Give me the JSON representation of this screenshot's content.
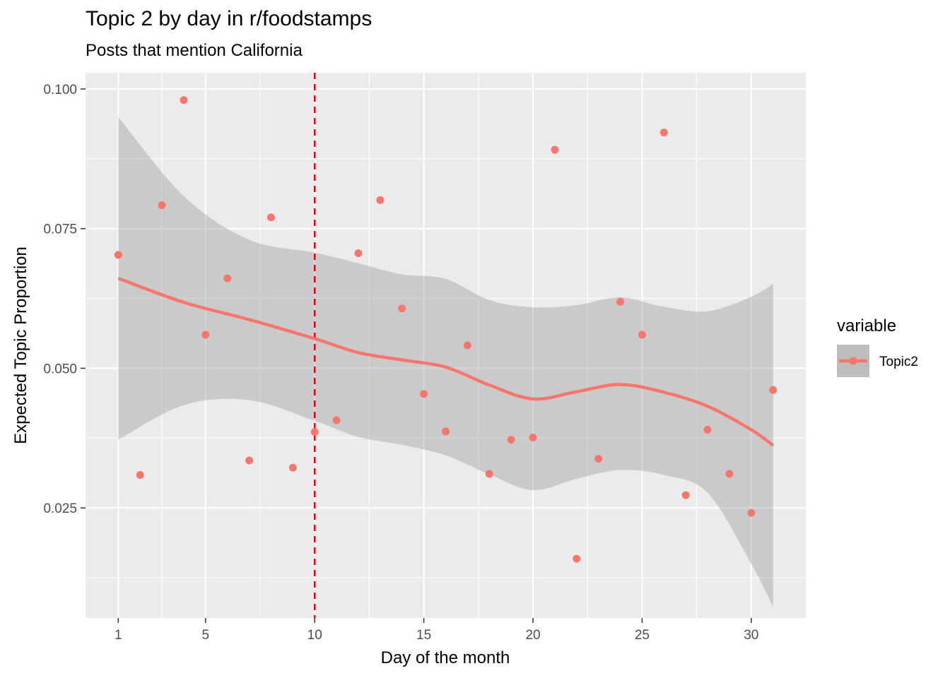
{
  "chart_data": {
    "type": "scatter",
    "title": "Topic 2 by day in r/foodstamps",
    "subtitle": "Posts that mention California",
    "xlabel": "Day of the month",
    "ylabel": "Expected Topic Proportion",
    "xlim": [
      -0.5,
      32.5
    ],
    "ylim": [
      0.0053,
      0.1029
    ],
    "x_ticks": [
      1,
      5,
      10,
      15,
      20,
      25,
      30
    ],
    "x_tick_labels": [
      "1",
      "5",
      "10",
      "15",
      "20",
      "25",
      "30"
    ],
    "y_ticks": [
      0.025,
      0.05,
      0.075,
      0.1
    ],
    "y_tick_labels": [
      "0.025",
      "0.050",
      "0.075",
      "0.100"
    ],
    "grid": true,
    "vline": {
      "x": 10,
      "color": "#e8000b",
      "style": "dashed"
    },
    "legend": {
      "title": "variable",
      "position": "right",
      "entries": [
        "Topic2"
      ]
    },
    "colors": {
      "series": "#f8766d",
      "ribbon": "#bdbdbd",
      "panel": "#ebebeb",
      "grid": "#ffffff"
    },
    "series": [
      {
        "name": "Topic2",
        "points": [
          [
            1,
            0.0703
          ],
          [
            2,
            0.0309
          ],
          [
            3,
            0.0792
          ],
          [
            4,
            0.098
          ],
          [
            5,
            0.056
          ],
          [
            6,
            0.0661
          ],
          [
            7,
            0.0335
          ],
          [
            8,
            0.077
          ],
          [
            9,
            0.0322
          ],
          [
            10,
            0.0386
          ],
          [
            11,
            0.0407
          ],
          [
            12,
            0.0706
          ],
          [
            13,
            0.0801
          ],
          [
            14,
            0.0607
          ],
          [
            15,
            0.0454
          ],
          [
            16,
            0.0387
          ],
          [
            17,
            0.0541
          ],
          [
            18,
            0.0311
          ],
          [
            19,
            0.0372
          ],
          [
            20,
            0.0376
          ],
          [
            21,
            0.0891
          ],
          [
            22,
            0.0159
          ],
          [
            23,
            0.0338
          ],
          [
            24,
            0.0619
          ],
          [
            25,
            0.056
          ],
          [
            26,
            0.0922
          ],
          [
            27,
            0.0273
          ],
          [
            28,
            0.039
          ],
          [
            29,
            0.0311
          ],
          [
            30,
            0.0241
          ],
          [
            31,
            0.0461
          ]
        ]
      }
    ],
    "smooth": {
      "x": [
        1,
        4,
        7,
        10,
        12,
        14,
        16,
        18,
        20,
        22,
        24,
        26,
        28,
        30,
        31
      ],
      "y": [
        0.0661,
        0.0618,
        0.0587,
        0.0553,
        0.0528,
        0.0515,
        0.0502,
        0.047,
        0.0445,
        0.0458,
        0.0471,
        0.0457,
        0.0432,
        0.039,
        0.0362
      ],
      "upper": [
        0.095,
        0.0808,
        0.073,
        0.0707,
        0.0688,
        0.0668,
        0.066,
        0.0622,
        0.0609,
        0.0613,
        0.0627,
        0.061,
        0.0602,
        0.0628,
        0.0651
      ],
      "lower": [
        0.0372,
        0.0434,
        0.0443,
        0.0406,
        0.0377,
        0.0363,
        0.0344,
        0.031,
        0.0282,
        0.0302,
        0.0318,
        0.0309,
        0.0277,
        0.015,
        0.0073
      ]
    }
  }
}
